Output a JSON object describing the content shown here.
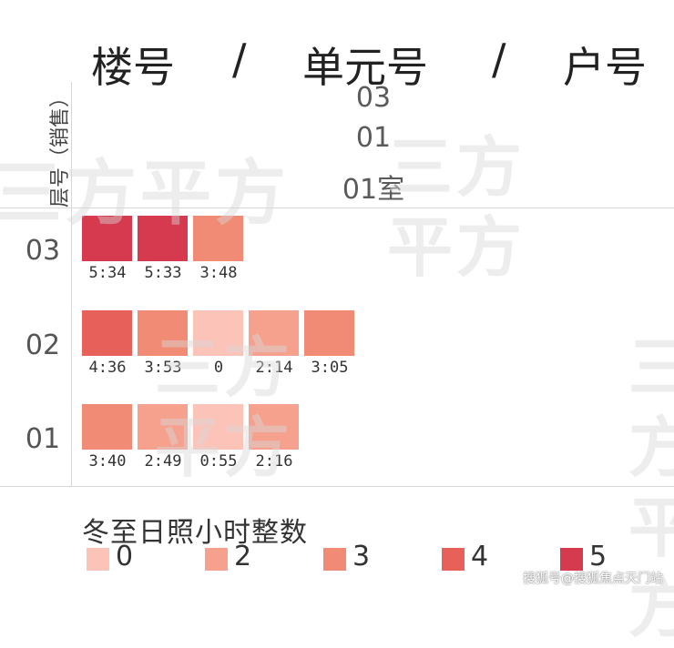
{
  "header": {
    "building": "楼号",
    "sep1": "/",
    "unit": "单元号",
    "sep2": "/",
    "room": "户号"
  },
  "axis_title": "层号（销售）",
  "unit_header": {
    "building": "03",
    "unit": "01",
    "room": "01室"
  },
  "watermark": "三方平方",
  "credit": "搜狐号@搜狐焦点天门站",
  "colors": {
    "0": "#fcc3b8",
    "2": "#f6a08e",
    "3": "#f28b76",
    "4": "#e8605a",
    "5": "#d63a4f"
  },
  "chart_data": {
    "type": "heatmap",
    "title": "冬至日照小时整数",
    "rows": [
      {
        "floor": "03",
        "cells": [
          {
            "label": "5:34",
            "level": 5
          },
          {
            "label": "5:33",
            "level": 5
          },
          {
            "label": "3:48",
            "level": 3
          }
        ]
      },
      {
        "floor": "02",
        "cells": [
          {
            "label": "4:36",
            "level": 4
          },
          {
            "label": "3:53",
            "level": 3
          },
          {
            "label": "0",
            "level": 0
          },
          {
            "label": "2:14",
            "level": 2
          },
          {
            "label": "3:05",
            "level": 3
          }
        ]
      },
      {
        "floor": "01",
        "cells": [
          {
            "label": "3:40",
            "level": 3
          },
          {
            "label": "2:49",
            "level": 2
          },
          {
            "label": "0:55",
            "level": 0
          },
          {
            "label": "2:16",
            "level": 2
          }
        ]
      }
    ],
    "legend": [
      {
        "label": "0",
        "level": 0
      },
      {
        "label": "2",
        "level": 2
      },
      {
        "label": "3",
        "level": 3
      },
      {
        "label": "4",
        "level": 4
      },
      {
        "label": "5",
        "level": 5
      }
    ]
  }
}
